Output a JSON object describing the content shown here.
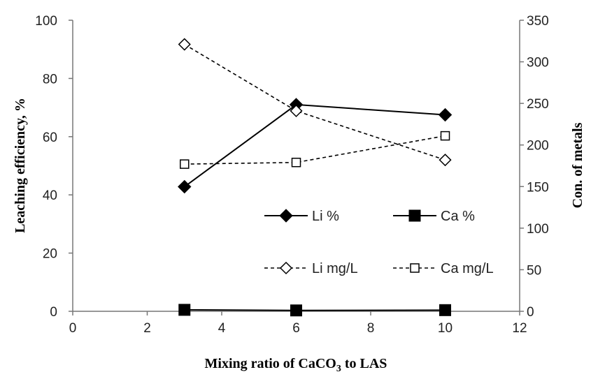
{
  "chart_data": {
    "type": "line",
    "title": "",
    "xlabel": {
      "prefix": "Mixing ratio of CaCO",
      "sub": "3",
      "suffix": " to LAS"
    },
    "ylabel": "Leaching efficiency, %",
    "y2label": "Con. of metals",
    "xlim": [
      0,
      12
    ],
    "ylim": [
      0,
      100
    ],
    "y2lim": [
      0,
      350
    ],
    "xticks": [
      "0",
      "2",
      "4",
      "6",
      "8",
      "10",
      "12"
    ],
    "yticks": [
      "0",
      "20",
      "40",
      "60",
      "80",
      "100"
    ],
    "y2ticks": [
      "0",
      "50",
      "100",
      "150",
      "200",
      "250",
      "300",
      "350"
    ],
    "grid": false,
    "legend_position": "lower-right inside plot",
    "series": [
      {
        "name": "Li %",
        "axis": "left",
        "marker": "diamond-filled",
        "line": "solid",
        "color": "#000000",
        "x": [
          3,
          6,
          10
        ],
        "y": [
          42.8,
          71.0,
          67.5
        ]
      },
      {
        "name": "Ca %",
        "axis": "left",
        "marker": "square-filled",
        "line": "solid",
        "color": "#000000",
        "x": [
          3,
          6,
          10
        ],
        "y": [
          0.5,
          0.3,
          0.4
        ]
      },
      {
        "name": "Li mg/L",
        "axis": "right",
        "marker": "diamond-open",
        "line": "dashed",
        "color": "#000000",
        "x": [
          3,
          6,
          10
        ],
        "y": [
          321,
          241,
          182
        ]
      },
      {
        "name": "Ca mg/L",
        "axis": "right",
        "marker": "square-open",
        "line": "dashed",
        "color": "#000000",
        "x": [
          3,
          6,
          10
        ],
        "y": [
          177,
          179,
          211
        ]
      }
    ]
  }
}
